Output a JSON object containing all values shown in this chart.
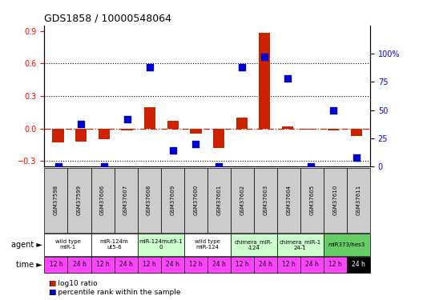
{
  "title": "GDS1858 / 10000548064",
  "samples": [
    "GSM37598",
    "GSM37599",
    "GSM37606",
    "GSM37607",
    "GSM37608",
    "GSM37609",
    "GSM37600",
    "GSM37601",
    "GSM37602",
    "GSM37603",
    "GSM37604",
    "GSM37605",
    "GSM37610",
    "GSM37611"
  ],
  "log10_ratio": [
    -0.13,
    -0.12,
    -0.1,
    -0.02,
    0.2,
    0.07,
    -0.05,
    -0.18,
    0.1,
    0.88,
    0.02,
    -0.01,
    -0.02,
    -0.07
  ],
  "percentile_rank": [
    0,
    38,
    0,
    42,
    88,
    14,
    20,
    0,
    88,
    97,
    78,
    0,
    50,
    8
  ],
  "ylim_left": [
    -0.35,
    0.95
  ],
  "ylim_right": [
    0,
    125
  ],
  "yticks_left": [
    -0.3,
    0.0,
    0.3,
    0.6,
    0.9
  ],
  "yticks_right": [
    0,
    25,
    50,
    75,
    100
  ],
  "ytick_labels_right": [
    "0",
    "25",
    "50",
    "75",
    "100%"
  ],
  "dotted_lines": [
    0.3,
    0.6
  ],
  "agent_groups": [
    {
      "label": "wild type\nmiR-1",
      "cols": [
        0,
        1
      ],
      "color": "#ffffff"
    },
    {
      "label": "miR-124m\nut5-6",
      "cols": [
        2,
        3
      ],
      "color": "#ffffff"
    },
    {
      "label": "miR-124mut9-1\n0",
      "cols": [
        4,
        5
      ],
      "color": "#ccffcc"
    },
    {
      "label": "wild type\nmiR-124",
      "cols": [
        6,
        7
      ],
      "color": "#ffffff"
    },
    {
      "label": "chimera_miR-\n-124",
      "cols": [
        8,
        9
      ],
      "color": "#ccffcc"
    },
    {
      "label": "chimera_miR-1\n24-1",
      "cols": [
        10,
        11
      ],
      "color": "#ccffcc"
    },
    {
      "label": "miR373/hes3",
      "cols": [
        12,
        13
      ],
      "color": "#66cc66"
    }
  ],
  "time_labels": [
    "12 h",
    "24 h",
    "12 h",
    "24 h",
    "12 h",
    "24 h",
    "12 h",
    "24 h",
    "12 h",
    "24 h",
    "12 h",
    "24 h",
    "12 h",
    "24 h"
  ],
  "time_last_black": true,
  "bar_color_red": "#cc2200",
  "dot_color_blue": "#0000cc",
  "bar_width": 0.5,
  "dot_size": 35,
  "background_color": "#ffffff",
  "sample_label_color": "#cccccc",
  "time_color_normal": "#ff44ff",
  "time_color_last": "#000000",
  "agent_label": "agent",
  "time_label": "time",
  "legend1": "log10 ratio",
  "legend2": "percentile rank within the sample"
}
